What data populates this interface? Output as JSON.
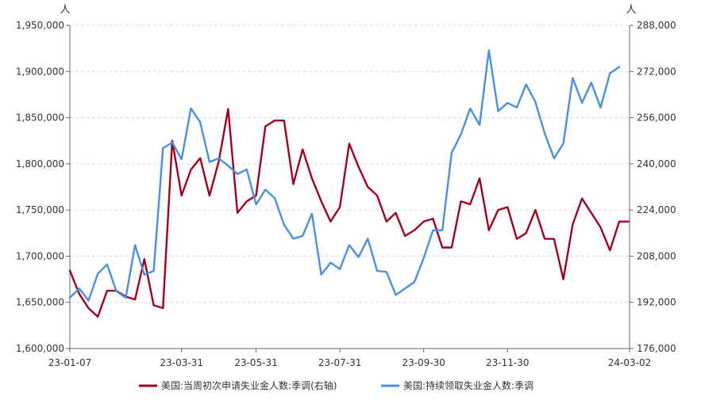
{
  "chart_data": {
    "type": "line",
    "left_axis": {
      "unit": "人",
      "ylim": [
        1600000,
        1950000
      ],
      "ticks": [
        1600000,
        1650000,
        1700000,
        1750000,
        1800000,
        1850000,
        1900000,
        1950000
      ],
      "tick_labels": [
        "1,600,000",
        "1,650,000",
        "1,700,000",
        "1,750,000",
        "1,800,000",
        "1,850,000",
        "1,900,000",
        "1,950,000"
      ]
    },
    "right_axis": {
      "unit": "人",
      "ylim": [
        176000,
        288000
      ],
      "ticks": [
        176000,
        192000,
        208000,
        224000,
        240000,
        256000,
        272000,
        288000
      ],
      "tick_labels": [
        "176,000",
        "192,000",
        "208,000",
        "224,000",
        "240,000",
        "256,000",
        "272,000",
        "288,000"
      ]
    },
    "x_tick_labels": [
      "23-01-07",
      "23-03-31",
      "23-05-31",
      "23-07-31",
      "23-09-30",
      "23-11-30",
      "24-03-02"
    ],
    "x_tick_index": [
      0,
      12,
      20,
      29,
      38,
      47,
      60
    ],
    "grid": true,
    "legend_position": "bottom-center",
    "series": [
      {
        "name": "美国:当周初次申请失业金人数:季调(右轴)",
        "axis": "right",
        "color": "#a5001c",
        "values": [
          203000,
          195000,
          190000,
          187000,
          196000,
          196000,
          194000,
          193000,
          207000,
          191000,
          190000,
          248000,
          229000,
          238000,
          242000,
          229000,
          241000,
          259000,
          223000,
          227000,
          229000,
          253000,
          255000,
          255000,
          233000,
          245000,
          235000,
          227000,
          220000,
          225000,
          247000,
          239000,
          232000,
          229000,
          220000,
          223000,
          215000,
          217000,
          220000,
          221000,
          211000,
          211000,
          227000,
          226000,
          235000,
          217000,
          224000,
          225000,
          214000,
          216000,
          224000,
          214000,
          214000,
          200000,
          219000,
          228000,
          223000,
          218000,
          210000,
          220000,
          220000
        ]
      },
      {
        "name": "美国:持续领取失业金人数:季调",
        "axis": "left",
        "color": "#4a90e2",
        "values": [
          1655000,
          1665000,
          1652000,
          1681000,
          1691000,
          1662000,
          1655000,
          1712000,
          1680000,
          1684000,
          1817000,
          1823000,
          1805000,
          1860000,
          1845000,
          1802000,
          1806000,
          1798000,
          1789000,
          1794000,
          1756000,
          1772000,
          1763000,
          1734000,
          1719000,
          1722000,
          1746000,
          1680000,
          1693000,
          1686000,
          1712000,
          1699000,
          1719000,
          1684000,
          1683000,
          1658000,
          1665000,
          1672000,
          1698000,
          1728000,
          1728000,
          1812000,
          1832000,
          1860000,
          1842000,
          1923000,
          1857000,
          1866000,
          1861000,
          1886000,
          1867000,
          1833000,
          1806000,
          1822000,
          1893000,
          1866000,
          1888000,
          1861000,
          1898000,
          1905000
        ]
      }
    ]
  }
}
